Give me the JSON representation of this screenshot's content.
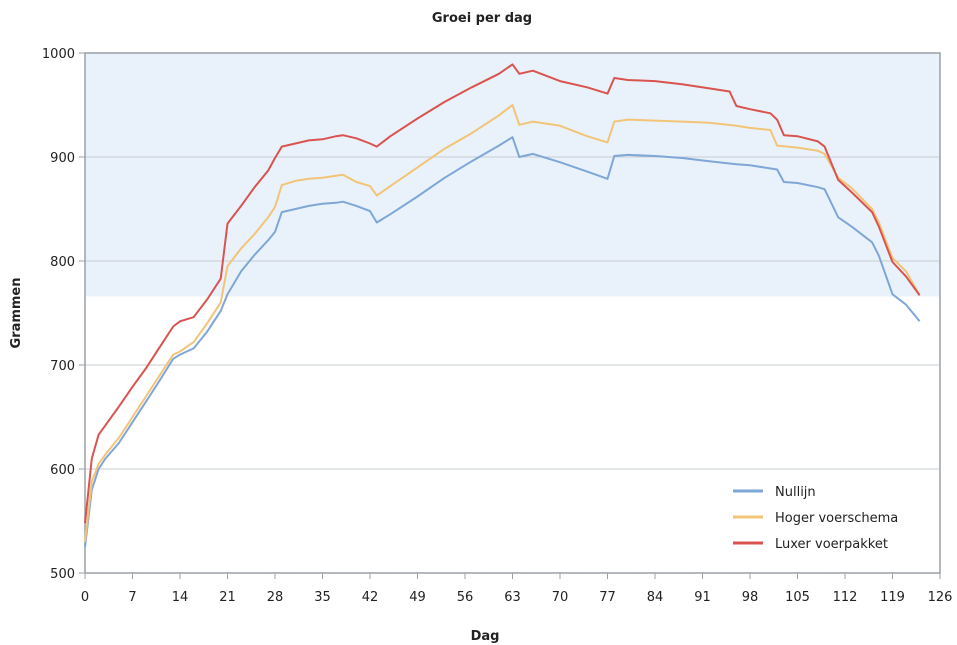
{
  "chart_data": {
    "type": "line",
    "title": "Groei per dag",
    "xlabel": "Dag",
    "ylabel": "Grammen",
    "xlim": [
      0,
      126
    ],
    "ylim": [
      500,
      1000
    ],
    "x_ticks": [
      0,
      7,
      14,
      21,
      28,
      35,
      42,
      49,
      56,
      63,
      70,
      77,
      84,
      91,
      98,
      105,
      112,
      119,
      126
    ],
    "y_ticks": [
      500,
      600,
      700,
      800,
      900,
      1000
    ],
    "grid": "horizontal",
    "shaded_band": [
      766,
      1000
    ],
    "legend_position": "bottom-right",
    "series": [
      {
        "name": "Nullijn",
        "color": "#7ea6d6",
        "points": [
          [
            0,
            525
          ],
          [
            1,
            580
          ],
          [
            2,
            600
          ],
          [
            3,
            610
          ],
          [
            5,
            625
          ],
          [
            7,
            645
          ],
          [
            9,
            665
          ],
          [
            11,
            685
          ],
          [
            13,
            706
          ],
          [
            14,
            710
          ],
          [
            16,
            716
          ],
          [
            18,
            732
          ],
          [
            20,
            752
          ],
          [
            21,
            768
          ],
          [
            23,
            790
          ],
          [
            25,
            806
          ],
          [
            27,
            820
          ],
          [
            28,
            828
          ],
          [
            29,
            847
          ],
          [
            31,
            850
          ],
          [
            33,
            853
          ],
          [
            35,
            855
          ],
          [
            37,
            856
          ],
          [
            38,
            857
          ],
          [
            40,
            853
          ],
          [
            42,
            848
          ],
          [
            43,
            837
          ],
          [
            45,
            845
          ],
          [
            49,
            862
          ],
          [
            53,
            880
          ],
          [
            57,
            896
          ],
          [
            61,
            911
          ],
          [
            63,
            919
          ],
          [
            64,
            900
          ],
          [
            66,
            903
          ],
          [
            70,
            895
          ],
          [
            74,
            886
          ],
          [
            77,
            879
          ],
          [
            78,
            901
          ],
          [
            80,
            902
          ],
          [
            84,
            901
          ],
          [
            88,
            899
          ],
          [
            92,
            896
          ],
          [
            96,
            893
          ],
          [
            98,
            892
          ],
          [
            102,
            888
          ],
          [
            103,
            876
          ],
          [
            105,
            875
          ],
          [
            108,
            871
          ],
          [
            109,
            869
          ],
          [
            111,
            842
          ],
          [
            113,
            833
          ],
          [
            116,
            818
          ],
          [
            117,
            805
          ],
          [
            119,
            768
          ],
          [
            121,
            758
          ],
          [
            123,
            742
          ]
        ]
      },
      {
        "name": "Hoger voerschema",
        "color": "#f2c478",
        "points": [
          [
            0,
            530
          ],
          [
            1,
            588
          ],
          [
            2,
            605
          ],
          [
            3,
            614
          ],
          [
            5,
            630
          ],
          [
            7,
            650
          ],
          [
            9,
            670
          ],
          [
            11,
            690
          ],
          [
            13,
            710
          ],
          [
            14,
            713
          ],
          [
            16,
            722
          ],
          [
            18,
            740
          ],
          [
            20,
            760
          ],
          [
            21,
            795
          ],
          [
            23,
            812
          ],
          [
            25,
            826
          ],
          [
            27,
            842
          ],
          [
            28,
            852
          ],
          [
            29,
            873
          ],
          [
            31,
            877
          ],
          [
            33,
            879
          ],
          [
            35,
            880
          ],
          [
            37,
            882
          ],
          [
            38,
            883
          ],
          [
            40,
            876
          ],
          [
            42,
            872
          ],
          [
            43,
            863
          ],
          [
            45,
            872
          ],
          [
            49,
            890
          ],
          [
            53,
            908
          ],
          [
            57,
            923
          ],
          [
            61,
            940
          ],
          [
            63,
            950
          ],
          [
            64,
            931
          ],
          [
            66,
            934
          ],
          [
            70,
            930
          ],
          [
            74,
            920
          ],
          [
            77,
            914
          ],
          [
            78,
            934
          ],
          [
            80,
            936
          ],
          [
            84,
            935
          ],
          [
            88,
            934
          ],
          [
            92,
            933
          ],
          [
            96,
            930
          ],
          [
            98,
            928
          ],
          [
            101,
            926
          ],
          [
            102,
            911
          ],
          [
            105,
            909
          ],
          [
            108,
            906
          ],
          [
            109,
            903
          ],
          [
            111,
            880
          ],
          [
            113,
            870
          ],
          [
            116,
            850
          ],
          [
            117,
            837
          ],
          [
            119,
            803
          ],
          [
            121,
            790
          ],
          [
            123,
            767
          ]
        ]
      },
      {
        "name": "Luxer voerpakket",
        "color": "#d9534f",
        "points": [
          [
            0,
            548
          ],
          [
            1,
            610
          ],
          [
            2,
            633
          ],
          [
            3,
            642
          ],
          [
            5,
            660
          ],
          [
            7,
            679
          ],
          [
            9,
            697
          ],
          [
            11,
            717
          ],
          [
            13,
            737
          ],
          [
            14,
            742
          ],
          [
            16,
            746
          ],
          [
            18,
            763
          ],
          [
            20,
            783
          ],
          [
            21,
            836
          ],
          [
            23,
            853
          ],
          [
            25,
            871
          ],
          [
            27,
            887
          ],
          [
            28,
            899
          ],
          [
            29,
            910
          ],
          [
            31,
            913
          ],
          [
            33,
            916
          ],
          [
            35,
            917
          ],
          [
            37,
            920
          ],
          [
            38,
            921
          ],
          [
            40,
            918
          ],
          [
            42,
            913
          ],
          [
            43,
            910
          ],
          [
            45,
            920
          ],
          [
            49,
            937
          ],
          [
            53,
            953
          ],
          [
            57,
            967
          ],
          [
            61,
            980
          ],
          [
            63,
            989
          ],
          [
            64,
            980
          ],
          [
            66,
            983
          ],
          [
            70,
            973
          ],
          [
            74,
            967
          ],
          [
            77,
            961
          ],
          [
            78,
            976
          ],
          [
            80,
            974
          ],
          [
            84,
            973
          ],
          [
            88,
            970
          ],
          [
            92,
            966
          ],
          [
            95,
            963
          ],
          [
            96,
            949
          ],
          [
            98,
            946
          ],
          [
            101,
            942
          ],
          [
            102,
            936
          ],
          [
            103,
            921
          ],
          [
            105,
            920
          ],
          [
            108,
            915
          ],
          [
            109,
            910
          ],
          [
            111,
            878
          ],
          [
            113,
            866
          ],
          [
            116,
            847
          ],
          [
            117,
            833
          ],
          [
            119,
            799
          ],
          [
            121,
            785
          ],
          [
            123,
            767
          ]
        ]
      }
    ]
  }
}
